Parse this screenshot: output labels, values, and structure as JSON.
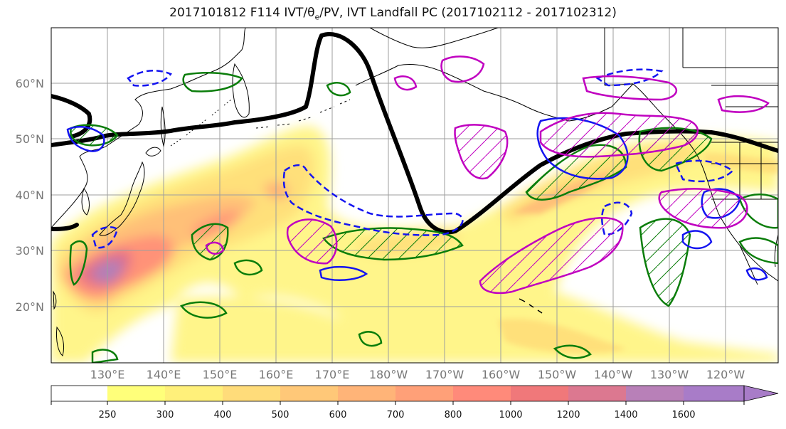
{
  "title": {
    "prefix": "2017101812 F114 IVT/",
    "theta": "θ",
    "theta_sub": "e",
    "suffix": "/PV, IVT Landfall PC (2017102112 - 2017102312)"
  },
  "latitude_labels": [
    "20°N",
    "30°N",
    "40°N",
    "50°N",
    "60°N"
  ],
  "longitude_labels": [
    "130°E",
    "140°E",
    "150°E",
    "160°E",
    "170°E",
    "180°W",
    "170°W",
    "160°W",
    "150°W",
    "140°W",
    "130°W",
    "120°W"
  ],
  "colorbar": {
    "levels": [
      "250",
      "300",
      "400",
      "500",
      "600",
      "700",
      "800",
      "1000",
      "1200",
      "1400",
      "1600"
    ],
    "colors": [
      "#ffffff",
      "#ffff7a",
      "#fff07a",
      "#ffdc7a",
      "#ffc878",
      "#ffb478",
      "#ffa078",
      "#ff8a7a",
      "#f0787a",
      "#dc7890",
      "#b880b8",
      "#a87cc8"
    ]
  },
  "colors": {
    "pv_line": "#000000",
    "green_contour": "#0a7d0a",
    "blue_contour": "#1414f0",
    "magenta_contour": "#c000c0",
    "coast": "#000000",
    "grid": "#9e9e9e"
  }
}
